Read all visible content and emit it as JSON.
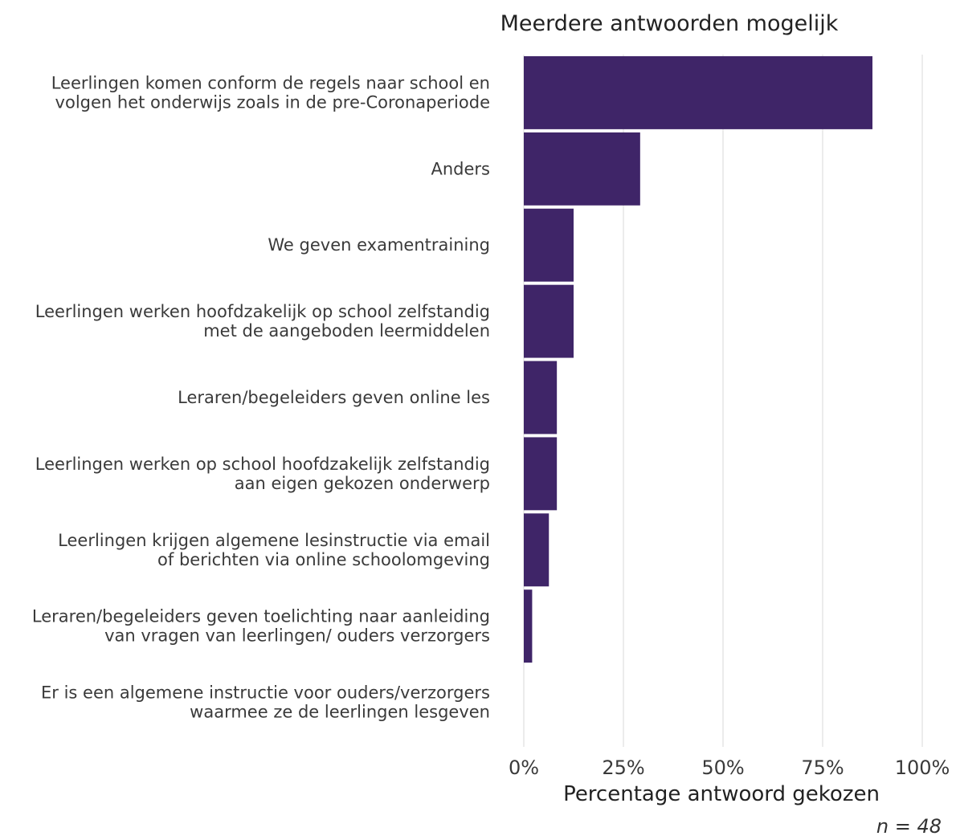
{
  "chart_data": {
    "type": "bar",
    "orientation": "horizontal",
    "title": "Meerdere antwoorden mogelijk",
    "xlabel": "Percentage antwoord gekozen",
    "ylabel": "",
    "note": "n = 48",
    "xlim": [
      0,
      100
    ],
    "xticks": [
      "0%",
      "25%",
      "50%",
      "75%",
      "100%"
    ],
    "grid": true,
    "bar_color": "#3f2568",
    "categories": [
      [
        "Leerlingen komen conform de regels naar school en",
        "volgen het onderwijs zoals in de pre-Coronaperiode"
      ],
      [
        "Anders"
      ],
      [
        "We geven examentraining"
      ],
      [
        "Leerlingen werken hoofdzakelijk op school zelfstandig",
        "met de aangeboden leermiddelen"
      ],
      [
        "Leraren/begeleiders geven online les"
      ],
      [
        "Leerlingen werken op school hoofdzakelijk zelfstandig",
        "aan eigen gekozen onderwerp"
      ],
      [
        "Leerlingen krijgen algemene lesinstructie via email",
        "of berichten via online schoolomgeving"
      ],
      [
        "Leraren/begeleiders geven toelichting naar aanleiding",
        "van vragen van leerlingen/ ouders verzorgers"
      ],
      [
        "Er is een algemene instructie voor ouders/verzorgers",
        "waarmee ze de leerlingen lesgeven"
      ]
    ],
    "values": [
      87.5,
      29.2,
      12.5,
      12.5,
      8.3,
      8.3,
      6.3,
      2.1,
      0
    ]
  }
}
